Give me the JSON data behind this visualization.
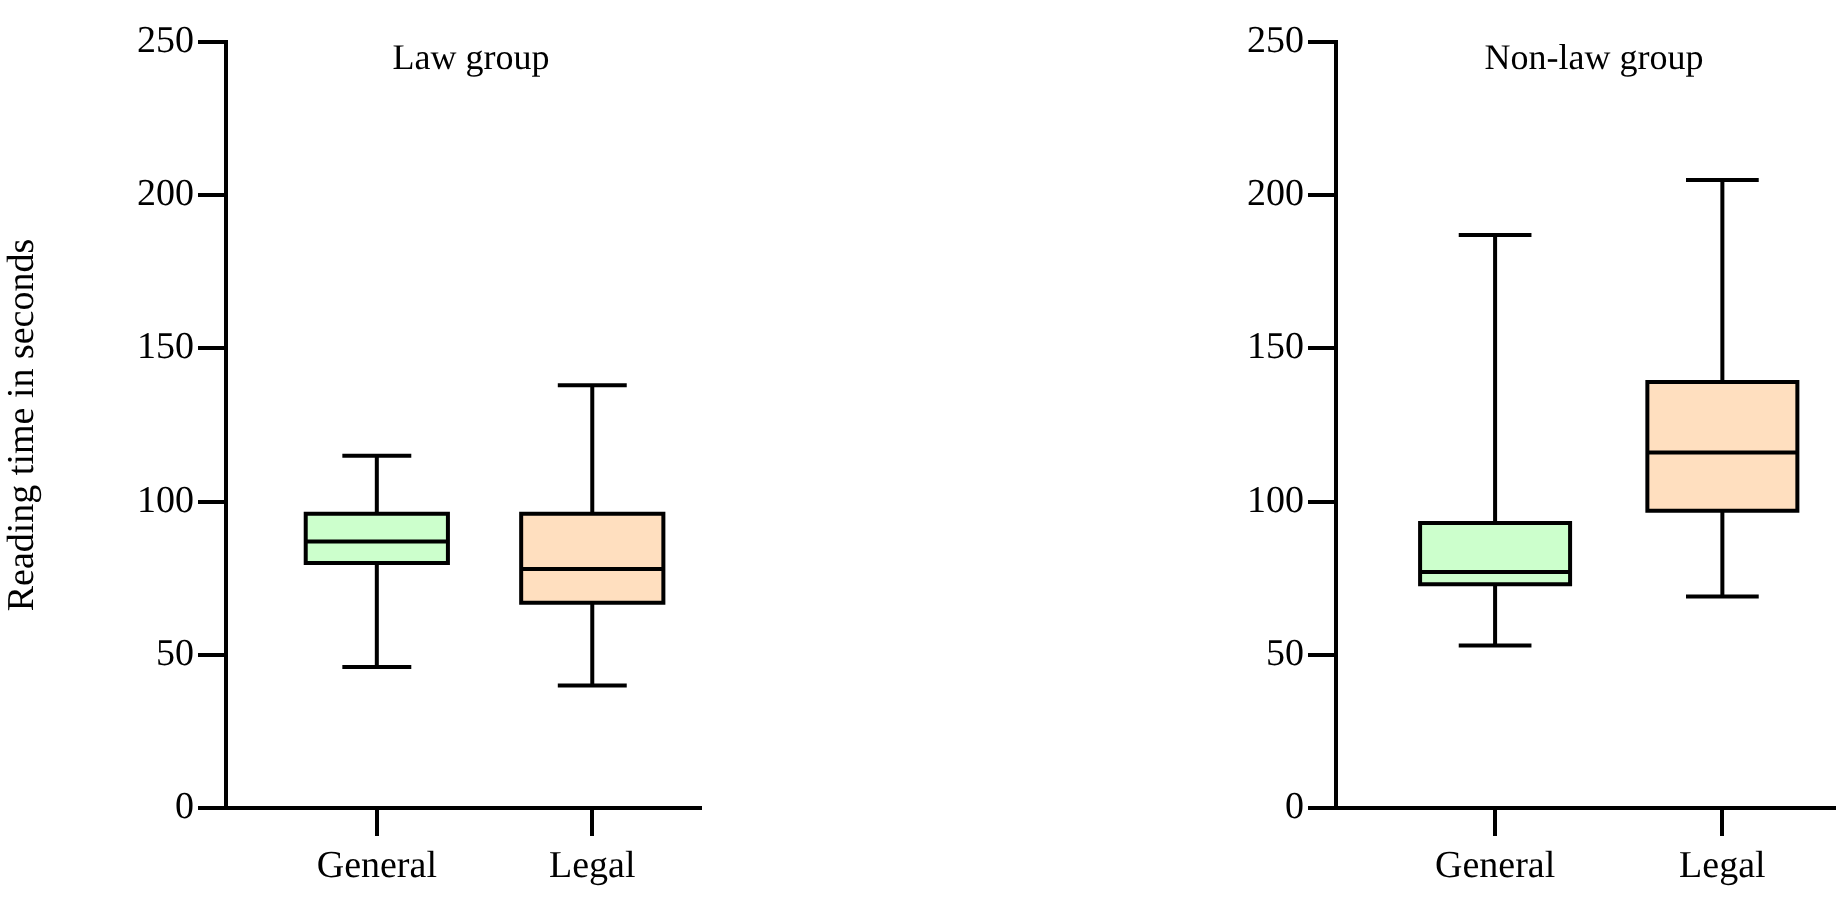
{
  "chart_data": [
    {
      "type": "box",
      "title": "Law group",
      "ylabel": "Reading time in seconds",
      "categories": [
        "General",
        "Legal"
      ],
      "boxes": [
        {
          "low": 46,
          "q1": 80,
          "median": 87,
          "q3": 96,
          "high": 115
        },
        {
          "low": 40,
          "q1": 67,
          "median": 78,
          "q3": 96,
          "high": 138
        }
      ],
      "colors": [
        "#ccffcc",
        "#ffdfbf"
      ],
      "ylim": [
        0,
        250
      ],
      "yticks": [
        0,
        50,
        100,
        150,
        200,
        250
      ]
    },
    {
      "type": "box",
      "title": "Non-law group",
      "categories": [
        "General",
        "Legal"
      ],
      "boxes": [
        {
          "low": 53,
          "q1": 73,
          "median": 77,
          "q3": 93,
          "high": 187
        },
        {
          "low": 69,
          "q1": 97,
          "median": 116,
          "q3": 139,
          "high": 205
        }
      ],
      "colors": [
        "#ccffcc",
        "#ffdfbf"
      ],
      "ylim": [
        0,
        250
      ],
      "yticks": [
        0,
        50,
        100,
        150,
        200,
        250
      ]
    }
  ]
}
